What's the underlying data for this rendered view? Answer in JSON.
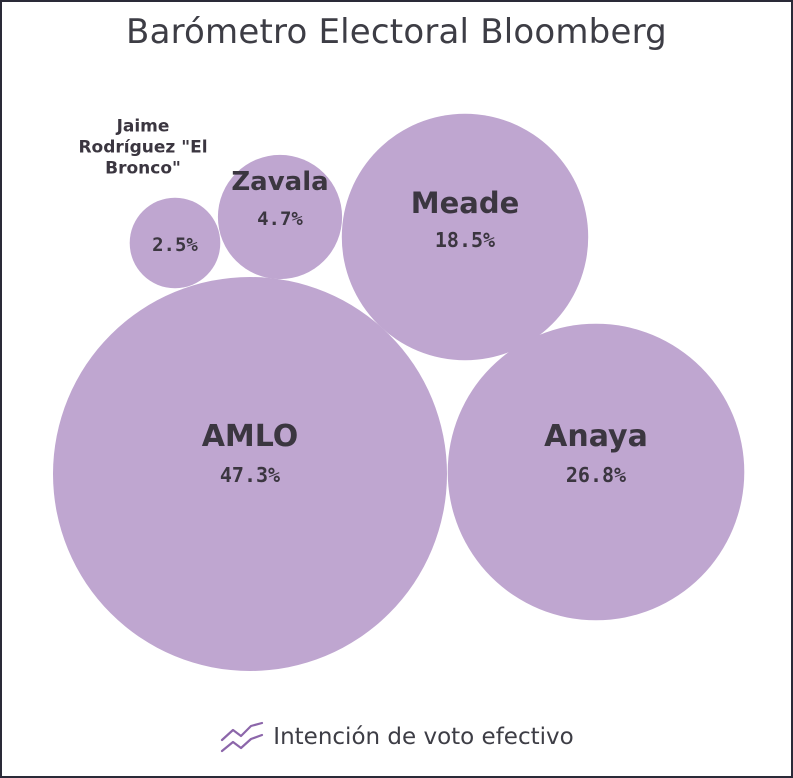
{
  "chart_data": {
    "type": "bubble",
    "title": "Barómetro Electoral Bloomberg",
    "series": [
      {
        "name": "AMLO",
        "value": 47.3,
        "value_label": "47.3%"
      },
      {
        "name": "Anaya",
        "value": 26.8,
        "value_label": "26.8%"
      },
      {
        "name": "Meade",
        "value": 18.5,
        "value_label": "18.5%"
      },
      {
        "name": "Zavala",
        "value": 4.7,
        "value_label": "4.7%"
      },
      {
        "name": "Jaime Rodríguez \"El Bronco\"",
        "name_lines": [
          "Jaime",
          "Rodríguez \"El",
          "Bronco\""
        ],
        "value": 2.5,
        "value_label": "2.5%"
      }
    ],
    "legend": {
      "label": "Intención de voto efectivo",
      "icon": "trend-lines-icon",
      "placement": "bottom-center"
    },
    "colors": {
      "bubble": "#bfa6d0",
      "text": "#3b3640"
    }
  }
}
